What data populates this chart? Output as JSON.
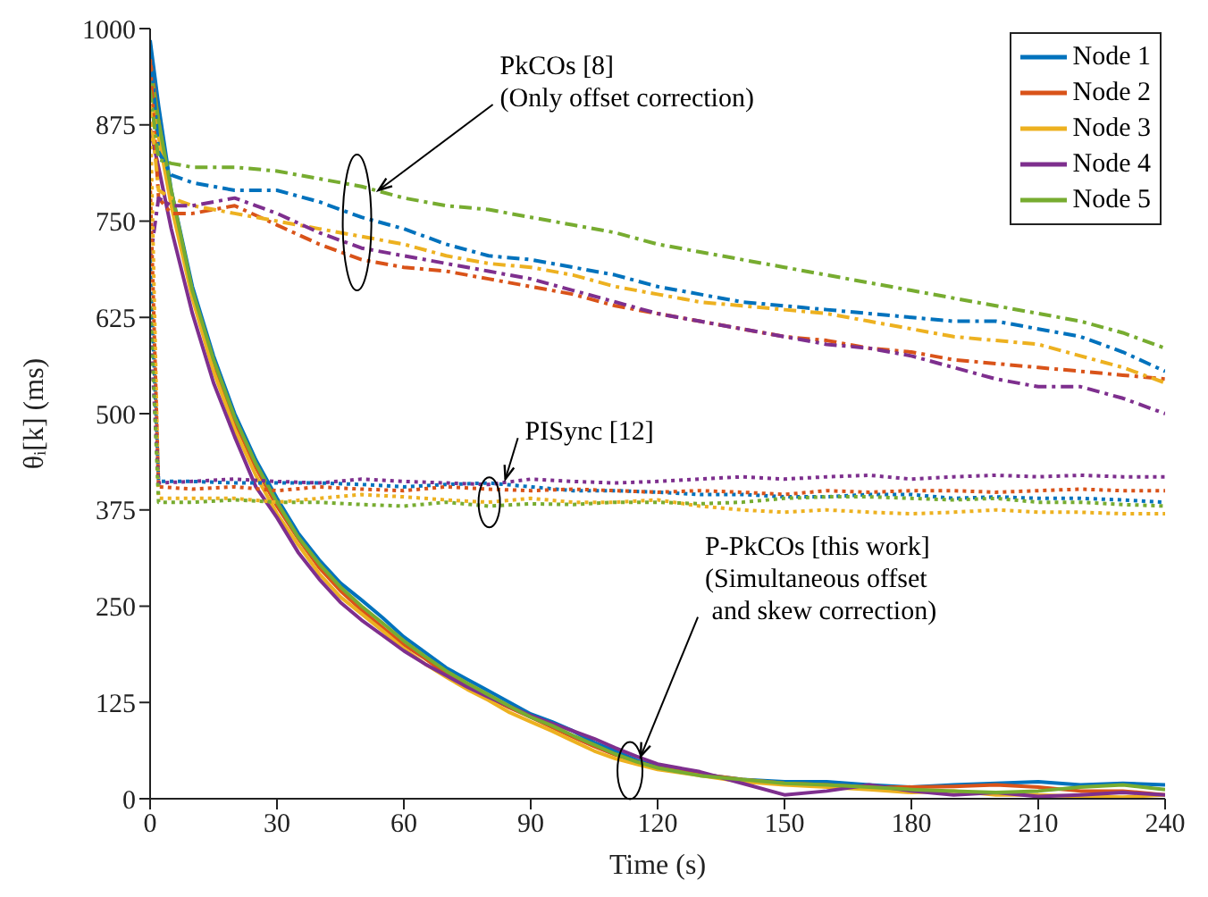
{
  "chart_data": {
    "type": "line",
    "xlabel": "Time (s)",
    "ylabel": "θᵢ[k] (ms)",
    "xlim": [
      0,
      240
    ],
    "xticks": [
      0,
      30,
      60,
      90,
      120,
      150,
      180,
      210,
      240
    ],
    "ylim": [
      0,
      1000
    ],
    "yticks": [
      0,
      125,
      250,
      375,
      500,
      625,
      750,
      875,
      1000
    ],
    "grid": false,
    "legend": "top right",
    "marker": "none",
    "annotations": [
      {
        "text": "PkCOs [8]\n(Only offset correction)",
        "x": 54,
        "y": 790
      },
      {
        "text": "PISync [12]",
        "x": 84,
        "y": 415
      },
      {
        "text": "P-PkCOs [this work]\n(Simultaneous offset\n and skew correction)",
        "x": 116,
        "y": 55
      }
    ],
    "series": [
      {
        "name": "Node 1",
        "color": "#0072bd",
        "line_style": "solid",
        "x": [
          0,
          2,
          5,
          10,
          15,
          20,
          25,
          30,
          35,
          40,
          45,
          50,
          55,
          60,
          65,
          70,
          75,
          80,
          85,
          90,
          95,
          100,
          105,
          110,
          115,
          120,
          130,
          140,
          150,
          160,
          170,
          180,
          190,
          200,
          210,
          220,
          230,
          240
        ],
        "values": [
          985,
          900,
          790,
          665,
          575,
          500,
          440,
          390,
          345,
          310,
          280,
          258,
          235,
          210,
          190,
          170,
          155,
          140,
          125,
          110,
          100,
          88,
          73,
          62,
          50,
          42,
          32,
          25,
          22,
          22,
          18,
          15,
          18,
          20,
          22,
          18,
          20,
          18
        ]
      },
      {
        "name": "Node 2",
        "color": "#d95319",
        "line_style": "solid",
        "x": [
          0,
          2,
          5,
          10,
          15,
          20,
          25,
          30,
          35,
          40,
          45,
          50,
          55,
          60,
          65,
          70,
          75,
          80,
          85,
          90,
          95,
          100,
          105,
          110,
          115,
          120,
          130,
          140,
          150,
          160,
          170,
          180,
          190,
          200,
          210,
          220,
          230,
          240
        ],
        "values": [
          960,
          880,
          780,
          655,
          565,
          490,
          430,
          380,
          338,
          300,
          270,
          245,
          222,
          200,
          182,
          162,
          146,
          132,
          118,
          106,
          93,
          80,
          68,
          57,
          48,
          40,
          32,
          25,
          20,
          18,
          15,
          15,
          16,
          18,
          15,
          10,
          10,
          5
        ]
      },
      {
        "name": "Node 3",
        "color": "#edb120",
        "line_style": "solid",
        "x": [
          0,
          2,
          5,
          10,
          15,
          20,
          25,
          30,
          35,
          40,
          45,
          50,
          55,
          60,
          65,
          70,
          75,
          80,
          85,
          90,
          95,
          100,
          105,
          110,
          115,
          120,
          130,
          140,
          150,
          160,
          170,
          180,
          190,
          200,
          210,
          220,
          230,
          240
        ],
        "values": [
          930,
          860,
          770,
          650,
          555,
          480,
          420,
          370,
          330,
          292,
          262,
          240,
          218,
          195,
          175,
          158,
          142,
          128,
          112,
          100,
          88,
          75,
          62,
          52,
          45,
          38,
          30,
          22,
          18,
          15,
          12,
          8,
          10,
          5,
          5,
          3,
          2,
          5
        ]
      },
      {
        "name": "Node 4",
        "color": "#7e2f8e",
        "line_style": "solid",
        "x": [
          0,
          2,
          5,
          10,
          15,
          20,
          25,
          30,
          35,
          40,
          45,
          50,
          55,
          60,
          65,
          70,
          75,
          80,
          85,
          90,
          95,
          100,
          105,
          110,
          115,
          120,
          130,
          140,
          150,
          160,
          170,
          180,
          190,
          200,
          210,
          220,
          230,
          240
        ],
        "values": [
          870,
          820,
          740,
          630,
          540,
          470,
          405,
          365,
          320,
          285,
          255,
          232,
          212,
          192,
          175,
          160,
          145,
          132,
          120,
          108,
          98,
          88,
          78,
          66,
          55,
          45,
          35,
          20,
          5,
          10,
          18,
          10,
          5,
          8,
          3,
          5,
          8,
          5
        ]
      },
      {
        "name": "Node 5",
        "color": "#77ac30",
        "line_style": "solid",
        "x": [
          0,
          2,
          5,
          10,
          15,
          20,
          25,
          30,
          35,
          40,
          45,
          50,
          55,
          60,
          65,
          70,
          75,
          80,
          85,
          90,
          95,
          100,
          105,
          110,
          115,
          120,
          130,
          140,
          150,
          160,
          170,
          180,
          190,
          200,
          210,
          220,
          230,
          240
        ],
        "values": [
          950,
          880,
          790,
          660,
          570,
          495,
          435,
          385,
          340,
          305,
          275,
          250,
          228,
          205,
          185,
          166,
          150,
          135,
          120,
          106,
          95,
          82,
          70,
          58,
          48,
          40,
          30,
          25,
          20,
          18,
          15,
          12,
          10,
          8,
          10,
          15,
          18,
          12
        ]
      },
      {
        "color": "#0072bd",
        "line_style": "dashed",
        "x": [
          0,
          2,
          5,
          10,
          20,
          30,
          40,
          50,
          60,
          70,
          80,
          90,
          100,
          110,
          120,
          130,
          140,
          150,
          160,
          170,
          180,
          190,
          200,
          210,
          220,
          230,
          240
        ],
        "values": [
          980,
          840,
          810,
          800,
          790,
          790,
          775,
          755,
          740,
          720,
          705,
          700,
          690,
          680,
          665,
          655,
          645,
          640,
          635,
          630,
          625,
          620,
          620,
          610,
          600,
          580,
          555
        ]
      },
      {
        "color": "#d95319",
        "line_style": "dashed",
        "x": [
          0,
          2,
          5,
          10,
          20,
          30,
          40,
          50,
          60,
          70,
          80,
          90,
          100,
          110,
          120,
          130,
          140,
          150,
          160,
          170,
          180,
          190,
          200,
          210,
          220,
          230,
          240
        ],
        "values": [
          960,
          780,
          760,
          760,
          770,
          745,
          720,
          700,
          690,
          685,
          675,
          665,
          655,
          640,
          630,
          620,
          610,
          600,
          595,
          585,
          580,
          570,
          565,
          560,
          555,
          550,
          545
        ]
      },
      {
        "color": "#edb120",
        "line_style": "dashed",
        "x": [
          0,
          2,
          5,
          10,
          20,
          30,
          40,
          50,
          60,
          70,
          80,
          90,
          100,
          110,
          120,
          130,
          140,
          150,
          160,
          170,
          180,
          190,
          200,
          210,
          220,
          230,
          240
        ],
        "values": [
          900,
          790,
          780,
          770,
          760,
          750,
          740,
          730,
          720,
          705,
          695,
          690,
          680,
          665,
          655,
          645,
          640,
          635,
          630,
          620,
          610,
          600,
          595,
          590,
          575,
          560,
          540
        ]
      },
      {
        "color": "#7e2f8e",
        "line_style": "dashed",
        "x": [
          0,
          2,
          5,
          10,
          20,
          30,
          40,
          50,
          60,
          70,
          80,
          90,
          100,
          110,
          120,
          130,
          140,
          150,
          160,
          170,
          180,
          190,
          200,
          210,
          220,
          230,
          240
        ],
        "values": [
          700,
          780,
          770,
          770,
          780,
          760,
          735,
          715,
          705,
          695,
          685,
          675,
          660,
          645,
          630,
          620,
          610,
          600,
          590,
          585,
          575,
          560,
          545,
          535,
          535,
          520,
          500
        ]
      },
      {
        "color": "#77ac30",
        "line_style": "dashed",
        "x": [
          0,
          2,
          5,
          10,
          20,
          30,
          40,
          50,
          60,
          70,
          80,
          90,
          100,
          110,
          120,
          130,
          140,
          150,
          160,
          170,
          180,
          190,
          200,
          210,
          220,
          230,
          240
        ],
        "values": [
          920,
          830,
          825,
          820,
          820,
          815,
          805,
          795,
          780,
          770,
          765,
          755,
          745,
          735,
          720,
          710,
          700,
          690,
          680,
          670,
          660,
          650,
          640,
          630,
          620,
          605,
          585
        ]
      },
      {
        "color": "#0072bd",
        "line_style": "dotted",
        "x": [
          0,
          2,
          10,
          20,
          30,
          40,
          50,
          60,
          70,
          80,
          90,
          100,
          110,
          120,
          130,
          140,
          150,
          160,
          170,
          180,
          190,
          200,
          210,
          220,
          230,
          240
        ],
        "values": [
          700,
          412,
          412,
          410,
          410,
          410,
          408,
          405,
          408,
          410,
          405,
          400,
          400,
          398,
          395,
          395,
          392,
          392,
          395,
          395,
          390,
          392,
          390,
          390,
          388,
          385
        ]
      },
      {
        "color": "#d95319",
        "line_style": "dotted",
        "x": [
          0,
          2,
          10,
          20,
          30,
          40,
          50,
          60,
          70,
          80,
          90,
          100,
          110,
          120,
          130,
          140,
          150,
          160,
          170,
          180,
          190,
          200,
          210,
          220,
          230,
          240
        ],
        "values": [
          800,
          405,
          402,
          405,
          400,
          405,
          402,
          400,
          405,
          402,
          400,
          402,
          400,
          398,
          400,
          398,
          395,
          400,
          398,
          400,
          400,
          398,
          400,
          402,
          400,
          400
        ]
      },
      {
        "color": "#edb120",
        "line_style": "dotted",
        "x": [
          0,
          2,
          10,
          20,
          30,
          40,
          50,
          60,
          70,
          80,
          90,
          100,
          110,
          120,
          130,
          140,
          150,
          160,
          170,
          180,
          190,
          200,
          210,
          220,
          230,
          240
        ],
        "values": [
          900,
          390,
          390,
          390,
          385,
          390,
          395,
          392,
          388,
          385,
          390,
          385,
          385,
          388,
          380,
          375,
          372,
          375,
          372,
          370,
          372,
          375,
          372,
          372,
          370,
          370
        ]
      },
      {
        "color": "#7e2f8e",
        "line_style": "dotted",
        "x": [
          0,
          2,
          10,
          20,
          30,
          40,
          50,
          60,
          70,
          80,
          90,
          100,
          110,
          120,
          130,
          140,
          150,
          160,
          170,
          180,
          190,
          200,
          210,
          220,
          230,
          240
        ],
        "values": [
          620,
          410,
          412,
          415,
          412,
          410,
          415,
          412,
          410,
          408,
          415,
          412,
          410,
          412,
          415,
          418,
          415,
          418,
          420,
          415,
          418,
          420,
          418,
          420,
          418,
          418
        ]
      },
      {
        "color": "#77ac30",
        "line_style": "dotted",
        "x": [
          0,
          2,
          10,
          20,
          30,
          40,
          50,
          60,
          70,
          80,
          90,
          100,
          110,
          120,
          130,
          140,
          150,
          160,
          170,
          180,
          190,
          200,
          210,
          220,
          230,
          240
        ],
        "values": [
          650,
          385,
          385,
          388,
          385,
          385,
          382,
          380,
          385,
          380,
          383,
          382,
          385,
          385,
          383,
          385,
          390,
          392,
          392,
          390,
          388,
          390,
          385,
          385,
          382,
          380
        ]
      }
    ]
  }
}
